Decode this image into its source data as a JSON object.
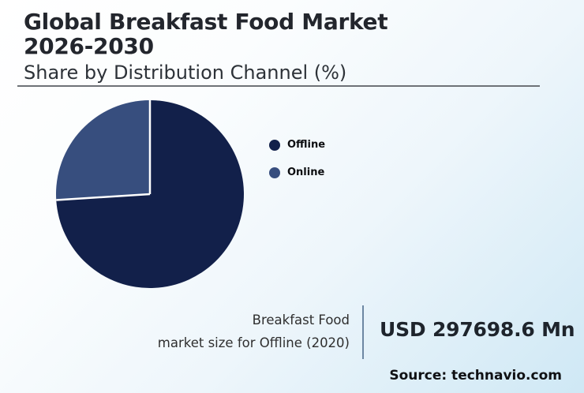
{
  "title": {
    "line1": "Global Breakfast Food Market",
    "line2": "2026-2030",
    "subtitle": "Share by Distribution Channel (%)"
  },
  "chart_data": {
    "type": "pie",
    "title": "Global Breakfast Food Market 2026-2030",
    "subtitle": "Share by Distribution Channel (%)",
    "slices": [
      {
        "label": "Offline",
        "value": 74,
        "color": "#12204a"
      },
      {
        "label": "Online",
        "value": 26,
        "color": "#374e7e"
      }
    ],
    "start_angle_deg": 0,
    "direction": "clockwise",
    "value_labels_shown": false,
    "legend_position": "right",
    "slice_border_color": "#ffffff"
  },
  "stat": {
    "line1": "Breakfast Food",
    "line2": "market size for Offline (2020)",
    "value": "USD 297698.6 Mn"
  },
  "source": "Source: technavio.com",
  "colors": {
    "background_start": "#ffffff",
    "background_end": "#cfe8f5",
    "title_text": "#23262d",
    "divider": "#6e7277",
    "stat_divider": "#6d87a3"
  }
}
